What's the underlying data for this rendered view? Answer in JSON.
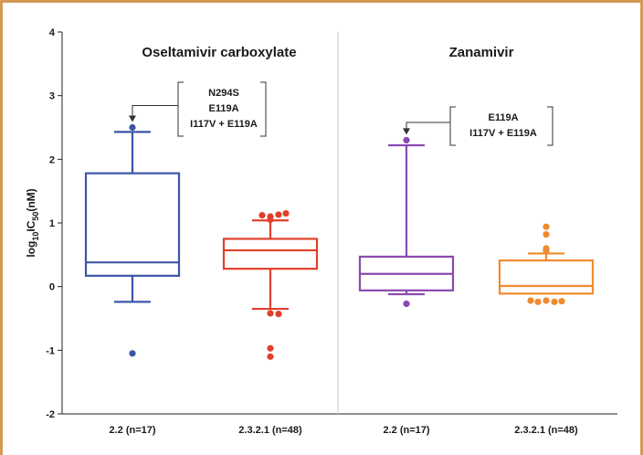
{
  "chart_data": {
    "type": "box",
    "ylabel": {
      "prefix": "log",
      "sub1": "10",
      "mid": "IC",
      "sub2": "50",
      "suffix": "(nM)"
    },
    "ylim": [
      -2,
      4
    ],
    "yticks": [
      "-2",
      "-1",
      "0",
      "1",
      "2",
      "3",
      "4"
    ],
    "grid": false,
    "panels": [
      {
        "title": "Oseltamivir carboxylate",
        "annotation": [
          "N294S",
          "E119A",
          "I117V + E119A"
        ],
        "annotation_target": 2.5,
        "boxes": [
          {
            "category": "2.2 (n=17)",
            "color": "#3b56a8",
            "whisker_low": -0.24,
            "q1": 0.17,
            "median": 0.38,
            "q3": 1.78,
            "whisker_high": 2.43,
            "outliers": [
              2.5,
              -1.05
            ]
          },
          {
            "category": "2.3.2.1 (n=48)",
            "color": "#e0402a",
            "whisker_low": -0.35,
            "q1": 0.28,
            "median": 0.57,
            "q3": 0.75,
            "whisker_high": 1.04,
            "outliers": [
              1.05,
              1.1,
              1.13,
              1.15,
              1.12,
              -0.42,
              -0.43,
              -0.97,
              -1.1
            ]
          }
        ]
      },
      {
        "title": "Zanamivir",
        "annotation": [
          "E119A",
          "I117V + E119A"
        ],
        "annotation_target": 2.3,
        "boxes": [
          {
            "category": "2.2 (n=17)",
            "color": "#8b49b0",
            "whisker_low": -0.12,
            "q1": -0.06,
            "median": 0.2,
            "q3": 0.47,
            "whisker_high": 2.22,
            "outliers": [
              2.3,
              -0.27
            ]
          },
          {
            "category": "2.3.2.1 (n=48)",
            "color": "#f08a2e",
            "whisker_low": -0.11,
            "q1": -0.11,
            "median": 0.01,
            "q3": 0.41,
            "whisker_high": 0.52,
            "outliers": [
              0.94,
              0.82,
              0.6,
              0.56,
              -0.22,
              -0.24,
              -0.23,
              -0.24,
              -0.22
            ]
          }
        ]
      }
    ]
  }
}
